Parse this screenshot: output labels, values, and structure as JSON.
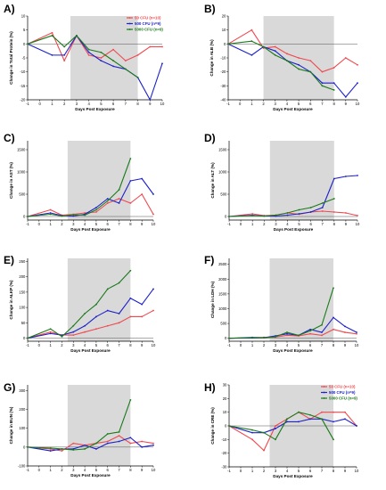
{
  "colors": {
    "s1": "#f0484f",
    "s2": "#1c21c9",
    "s3": "#1a7a1a",
    "shade": "#d9d9d9"
  },
  "legend": [
    {
      "label": "50 CFU (n=10)",
      "color": "#f0484f"
    },
    {
      "label": "500 CFU (n=9)",
      "color": "#1c21c9"
    },
    {
      "label": "5000 CFU (n=9)",
      "color": "#1a7a1a"
    }
  ],
  "chart_data": [
    {
      "type": "line",
      "panel_label": "A)",
      "xlabel": "Days Post Exposure",
      "ylabel": "Change in Total Protein (%)",
      "x_ticks": [
        -1,
        0,
        1,
        2,
        3,
        4,
        5,
        6,
        7,
        8,
        9,
        10
      ],
      "xlim": [
        -1,
        10
      ],
      "y_ticks": [
        10,
        5,
        0,
        -5,
        -10,
        -15,
        -20
      ],
      "ylim": [
        -20,
        10
      ],
      "shade": [
        2.5,
        8
      ],
      "refline": 0,
      "legend_pos": "top-right",
      "series": [
        {
          "name": "50 CFU (n=10)",
          "x": [
            -1,
            1,
            2,
            3,
            4,
            5,
            6,
            7,
            8,
            9,
            10
          ],
          "y": [
            0,
            4,
            -6,
            3,
            -4,
            -5,
            -2,
            -6,
            -4,
            -1,
            -1
          ]
        },
        {
          "name": "500 CFU (n=9)",
          "x": [
            -1,
            1,
            2,
            3,
            4,
            5,
            6,
            7,
            8,
            9,
            10
          ],
          "y": [
            0,
            -4,
            -4,
            3,
            -3,
            -6,
            -8,
            -9,
            -12,
            -20,
            -7
          ]
        },
        {
          "name": "5000 CFU (n=9)",
          "x": [
            -1,
            1,
            2,
            3,
            4,
            5,
            6,
            7,
            8
          ],
          "y": [
            0,
            3,
            -1,
            3,
            -2,
            -3,
            -6,
            -9,
            -12
          ]
        }
      ]
    },
    {
      "type": "line",
      "panel_label": "B)",
      "xlabel": "Days Post Exposure",
      "ylabel": "Change in ALB (%)",
      "x_ticks": [
        -1,
        0,
        1,
        2,
        3,
        4,
        5,
        6,
        7,
        8,
        9,
        10
      ],
      "xlim": [
        -1,
        10
      ],
      "y_ticks": [
        20,
        10,
        0,
        -10,
        -20,
        -30,
        -40
      ],
      "ylim": [
        -40,
        20
      ],
      "shade": [
        2,
        8
      ],
      "refline": 0,
      "series": [
        {
          "name": "50 CFU (n=10)",
          "x": [
            -1,
            1,
            2,
            3,
            4,
            5,
            6,
            7,
            8,
            9,
            10
          ],
          "y": [
            0,
            10,
            -3,
            -2,
            -7,
            -10,
            -12,
            -20,
            -17,
            -10,
            -15
          ]
        },
        {
          "name": "500 CFU (n=9)",
          "x": [
            -1,
            1,
            2,
            3,
            4,
            5,
            6,
            7,
            8,
            9,
            10
          ],
          "y": [
            0,
            -8,
            -2,
            -5,
            -12,
            -15,
            -20,
            -28,
            -28,
            -38,
            -28
          ]
        },
        {
          "name": "5000 CFU (n=9)",
          "x": [
            -1,
            1,
            2,
            3,
            4,
            5,
            6,
            7,
            8
          ],
          "y": [
            0,
            2,
            -2,
            -8,
            -12,
            -18,
            -20,
            -30,
            -33
          ]
        }
      ]
    },
    {
      "type": "line",
      "panel_label": "C)",
      "xlabel": "Days Post Exposure",
      "ylabel": "Change in AST (%)",
      "x_ticks": [
        -1,
        0,
        1,
        2,
        3,
        4,
        5,
        6,
        7,
        8,
        9,
        10
      ],
      "xlim": [
        -1,
        10
      ],
      "y_ticks": [
        1500,
        1000,
        500,
        0
      ],
      "ylim": [
        -80,
        1700
      ],
      "shade": [
        2.5,
        8
      ],
      "refline": 0,
      "series": [
        {
          "name": "50 CFU (n=10)",
          "x": [
            -1,
            1,
            2,
            3,
            4,
            5,
            6,
            7,
            8,
            9,
            10
          ],
          "y": [
            0,
            150,
            30,
            50,
            80,
            100,
            300,
            400,
            300,
            500,
            50
          ]
        },
        {
          "name": "500 CFU (n=9)",
          "x": [
            -1,
            1,
            2,
            3,
            4,
            5,
            6,
            7,
            8,
            9,
            10
          ],
          "y": [
            0,
            80,
            20,
            10,
            50,
            200,
            400,
            300,
            800,
            850,
            500
          ]
        },
        {
          "name": "5000 CFU (n=9)",
          "x": [
            -1,
            1,
            2,
            3,
            4,
            5,
            6,
            7,
            8
          ],
          "y": [
            0,
            50,
            10,
            40,
            30,
            150,
            350,
            600,
            1300
          ]
        }
      ]
    },
    {
      "type": "line",
      "panel_label": "D)",
      "xlabel": "Days Post Exposure",
      "ylabel": "Change in ALT (%)",
      "x_ticks": [
        -1,
        0,
        1,
        2,
        3,
        4,
        5,
        6,
        7,
        8,
        9,
        10
      ],
      "xlim": [
        -1,
        10
      ],
      "y_ticks": [
        1500,
        1000,
        500,
        0
      ],
      "ylim": [
        -80,
        1700
      ],
      "shade": [
        2.5,
        8
      ],
      "refline": 0,
      "series": [
        {
          "name": "50 CFU (n=10)",
          "x": [
            -1,
            1,
            2,
            3,
            4,
            5,
            6,
            7,
            8,
            9,
            10
          ],
          "y": [
            0,
            60,
            20,
            30,
            80,
            50,
            100,
            120,
            100,
            80,
            20
          ]
        },
        {
          "name": "500 CFU (n=9)",
          "x": [
            -1,
            1,
            2,
            3,
            4,
            5,
            6,
            7,
            8,
            9,
            10
          ],
          "y": [
            0,
            30,
            10,
            10,
            30,
            60,
            100,
            200,
            850,
            900,
            920
          ]
        },
        {
          "name": "5000 CFU (n=9)",
          "x": [
            -1,
            1,
            2,
            3,
            4,
            5,
            6,
            7,
            8
          ],
          "y": [
            0,
            20,
            10,
            30,
            80,
            150,
            200,
            300,
            400
          ]
        }
      ]
    },
    {
      "type": "line",
      "panel_label": "E)",
      "xlabel": "Days Post Exposure",
      "ylabel": "Change in ALKP (%)",
      "x_ticks": [
        -1,
        0,
        1,
        2,
        3,
        4,
        5,
        6,
        7,
        8,
        9,
        10
      ],
      "xlim": [
        -1,
        10
      ],
      "y_ticks": [
        250,
        200,
        150,
        100,
        50,
        0
      ],
      "ylim": [
        -10,
        260
      ],
      "shade": [
        2.5,
        8
      ],
      "refline": 0,
      "series": [
        {
          "name": "50 CFU (n=10)",
          "x": [
            -1,
            1,
            2,
            3,
            4,
            5,
            6,
            7,
            8,
            9,
            10
          ],
          "y": [
            0,
            20,
            10,
            10,
            20,
            30,
            40,
            50,
            70,
            70,
            90
          ]
        },
        {
          "name": "500 CFU (n=9)",
          "x": [
            -1,
            1,
            2,
            3,
            4,
            5,
            6,
            7,
            8,
            9,
            10
          ],
          "y": [
            0,
            15,
            10,
            20,
            40,
            70,
            90,
            80,
            130,
            110,
            160
          ]
        },
        {
          "name": "5000 CFU (n=9)",
          "x": [
            -1,
            1,
            2,
            3,
            4,
            5,
            6,
            7,
            8
          ],
          "y": [
            0,
            30,
            5,
            40,
            80,
            110,
            160,
            180,
            220
          ]
        }
      ]
    },
    {
      "type": "line",
      "panel_label": "F)",
      "xlabel": "Days Post Exposure",
      "ylabel": "Change in LDH (%)",
      "x_ticks": [
        -1,
        0,
        1,
        2,
        3,
        4,
        5,
        6,
        7,
        8,
        9,
        10
      ],
      "xlim": [
        -1,
        10
      ],
      "y_ticks": [
        2500,
        2000,
        1500,
        1000,
        500,
        0
      ],
      "ylim": [
        -100,
        2700
      ],
      "shade": [
        2.5,
        8
      ],
      "refline": 0,
      "series": [
        {
          "name": "50 CFU (n=10)",
          "x": [
            -1,
            1,
            2,
            3,
            4,
            5,
            6,
            7,
            8,
            9,
            10
          ],
          "y": [
            0,
            20,
            30,
            40,
            100,
            80,
            150,
            100,
            300,
            200,
            150
          ]
        },
        {
          "name": "500 CFU (n=9)",
          "x": [
            -1,
            1,
            2,
            3,
            4,
            5,
            6,
            7,
            8,
            9,
            10
          ],
          "y": [
            0,
            10,
            20,
            80,
            150,
            100,
            300,
            200,
            700,
            400,
            200
          ]
        },
        {
          "name": "5000 CFU (n=9)",
          "x": [
            -1,
            1,
            2,
            3,
            4,
            5,
            6,
            7,
            8
          ],
          "y": [
            0,
            30,
            20,
            50,
            200,
            100,
            250,
            450,
            1700
          ]
        }
      ]
    },
    {
      "type": "line",
      "panel_label": "G)",
      "xlabel": "Days Post Exposure",
      "ylabel": "Change in BUN (%)",
      "x_ticks": [
        -1,
        0,
        1,
        2,
        3,
        4,
        5,
        6,
        7,
        8,
        9,
        10
      ],
      "xlim": [
        -1,
        10
      ],
      "y_ticks": [
        300,
        200,
        100,
        0,
        -100
      ],
      "ylim": [
        -100,
        330
      ],
      "shade": [
        2.5,
        8
      ],
      "refline": 0,
      "series": [
        {
          "name": "50 CFU (n=10)",
          "x": [
            -1,
            1,
            2,
            3,
            4,
            5,
            6,
            7,
            8,
            9,
            10
          ],
          "y": [
            0,
            -10,
            -20,
            20,
            10,
            20,
            30,
            60,
            20,
            30,
            20
          ]
        },
        {
          "name": "500 CFU (n=9)",
          "x": [
            -1,
            1,
            2,
            3,
            4,
            5,
            6,
            7,
            8,
            9,
            10
          ],
          "y": [
            0,
            -20,
            -10,
            -10,
            10,
            -10,
            20,
            30,
            50,
            0,
            10
          ]
        },
        {
          "name": "5000 CFU (n=9)",
          "x": [
            -1,
            1,
            2,
            3,
            4,
            5,
            6,
            7,
            8
          ],
          "y": [
            0,
            -5,
            -10,
            -15,
            -10,
            20,
            70,
            80,
            250
          ]
        }
      ]
    },
    {
      "type": "line",
      "panel_label": "H)",
      "xlabel": "Days Post Exposure",
      "ylabel": "Change in CRE (%)",
      "x_ticks": [
        -1,
        0,
        1,
        2,
        3,
        4,
        5,
        6,
        7,
        8,
        9,
        10
      ],
      "xlim": [
        -1,
        10
      ],
      "y_ticks": [
        30,
        20,
        10,
        0,
        -10,
        -20,
        -30
      ],
      "ylim": [
        -30,
        30
      ],
      "shade": [
        2.5,
        8
      ],
      "refline": 0,
      "legend_pos": "top-right",
      "series": [
        {
          "name": "50 CFU (n=10)",
          "x": [
            -1,
            1,
            2,
            3,
            4,
            5,
            6,
            7,
            8,
            9,
            10
          ],
          "y": [
            0,
            -10,
            -18,
            0,
            5,
            10,
            5,
            10,
            10,
            10,
            0
          ]
        },
        {
          "name": "500 CFU (n=9)",
          "x": [
            -1,
            1,
            2,
            3,
            4,
            5,
            6,
            7,
            8,
            9,
            10
          ],
          "y": [
            0,
            -5,
            -5,
            -2,
            3,
            3,
            5,
            5,
            3,
            5,
            0
          ]
        },
        {
          "name": "5000 CFU (n=9)",
          "x": [
            -1,
            1,
            2,
            3,
            4,
            5,
            6,
            7,
            8
          ],
          "y": [
            0,
            -3,
            -5,
            -10,
            5,
            10,
            8,
            5,
            -10
          ]
        }
      ]
    }
  ]
}
